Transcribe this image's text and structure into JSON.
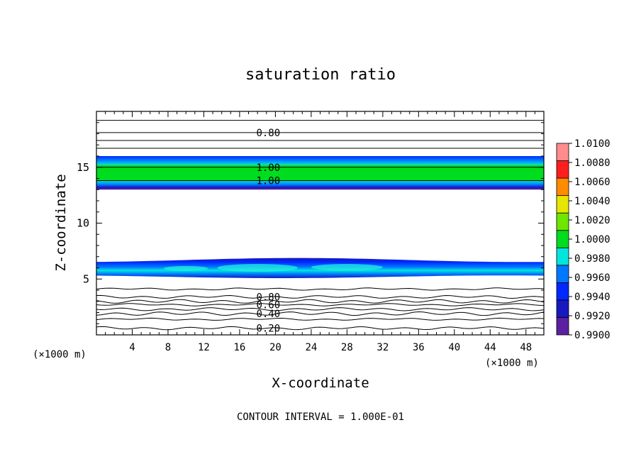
{
  "chart_data": {
    "type": "heatmap",
    "title": "saturation ratio",
    "xlabel": "X-coordinate",
    "ylabel": "Z-coordinate",
    "x_unit": "(×1000 m)",
    "y_unit": "(×1000 m)",
    "footer": "CONTOUR INTERVAL = 1.000E-01",
    "xlim": [
      0,
      50
    ],
    "ylim": [
      0,
      20
    ],
    "x_ticks": [
      4,
      8,
      12,
      16,
      20,
      24,
      28,
      32,
      36,
      40,
      44,
      48
    ],
    "y_ticks": [
      5,
      10,
      15
    ],
    "colorbar": {
      "levels": [
        0.99,
        0.992,
        0.994,
        0.996,
        0.998,
        1.0,
        1.002,
        1.004,
        1.006,
        1.008,
        1.01
      ],
      "labels": [
        "0.9900",
        "0.9920",
        "0.9940",
        "0.9960",
        "0.9980",
        "1.0000",
        "1.0020",
        "1.0040",
        "1.0060",
        "1.0080",
        "1.0100"
      ],
      "colors": [
        "#5c1fa0",
        "#1818c0",
        "#0028ff",
        "#0078ff",
        "#00e6dc",
        "#00dc1e",
        "#6ee600",
        "#e6e600",
        "#ff8c00",
        "#ff1e1e",
        "#ff8c8c"
      ]
    },
    "contour_labels": [
      {
        "label": "0.80",
        "x": 19.2,
        "z": 18.1
      },
      {
        "label": "1.00",
        "x": 19.2,
        "z": 15.0
      },
      {
        "label": "1.00",
        "x": 19.2,
        "z": 13.8
      },
      {
        "label": "0.80",
        "x": 19.2,
        "z": 3.4
      },
      {
        "label": "0.60",
        "x": 19.2,
        "z": 2.7
      },
      {
        "label": "0.40",
        "x": 19.2,
        "z": 1.9
      },
      {
        "label": "0.20",
        "x": 19.2,
        "z": 0.6
      }
    ],
    "upper_band": {
      "z_bottom": 13.0,
      "z_top": 16.0,
      "core_bottom": 13.8,
      "core_top": 15.2
    },
    "lower_band": {
      "z_bottom": 5.2,
      "z_top": 6.7
    }
  }
}
